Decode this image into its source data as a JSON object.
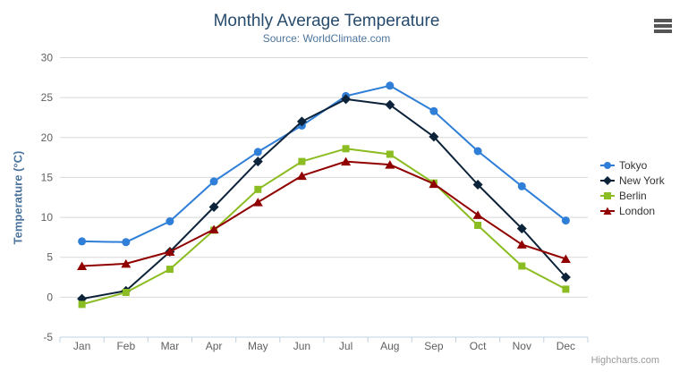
{
  "chart": {
    "title": "Monthly Average Temperature",
    "subtitle": "Source: WorldClimate.com",
    "y_axis_title": "Temperature (°C)",
    "credits": "Highcharts.com",
    "context_menu_icon": "hamburger-icon"
  },
  "chart_data": {
    "type": "line",
    "title": "Monthly Average Temperature",
    "subtitle": "Source: WorldClimate.com",
    "xlabel": "",
    "ylabel": "Temperature (°C)",
    "ylim": [
      -5,
      30
    ],
    "y_ticks": [
      -5,
      0,
      5,
      10,
      15,
      20,
      25,
      30
    ],
    "grid": true,
    "legend_position": "right",
    "categories": [
      "Jan",
      "Feb",
      "Mar",
      "Apr",
      "May",
      "Jun",
      "Jul",
      "Aug",
      "Sep",
      "Oct",
      "Nov",
      "Dec"
    ],
    "series": [
      {
        "name": "Tokyo",
        "color": "#2f7ed8",
        "marker": "circle",
        "values": [
          7.0,
          6.9,
          9.5,
          14.5,
          18.2,
          21.5,
          25.2,
          26.5,
          23.3,
          18.3,
          13.9,
          9.6
        ]
      },
      {
        "name": "New York",
        "color": "#0d233a",
        "marker": "diamond",
        "values": [
          -0.2,
          0.8,
          5.7,
          11.3,
          17.0,
          22.0,
          24.8,
          24.1,
          20.1,
          14.1,
          8.6,
          2.5
        ]
      },
      {
        "name": "Berlin",
        "color": "#8bbc21",
        "marker": "square",
        "values": [
          -0.9,
          0.6,
          3.5,
          8.4,
          13.5,
          17.0,
          18.6,
          17.9,
          14.3,
          9.0,
          3.9,
          1.0
        ]
      },
      {
        "name": "London",
        "color": "#910000",
        "marker": "triangle",
        "values": [
          3.9,
          4.2,
          5.7,
          8.5,
          11.9,
          15.2,
          17.0,
          16.6,
          14.2,
          10.3,
          6.6,
          4.8
        ]
      }
    ],
    "colors": {
      "grid_line": "#d8d8d8",
      "axis_line": "#c0d0e0",
      "tick_label": "#606060",
      "title": "#274b6d",
      "subtitle": "#4d759e",
      "y_axis_title": "#4d759e",
      "legend_text": "#333333",
      "credits": "#999999",
      "menu_icon": "#555555"
    }
  }
}
